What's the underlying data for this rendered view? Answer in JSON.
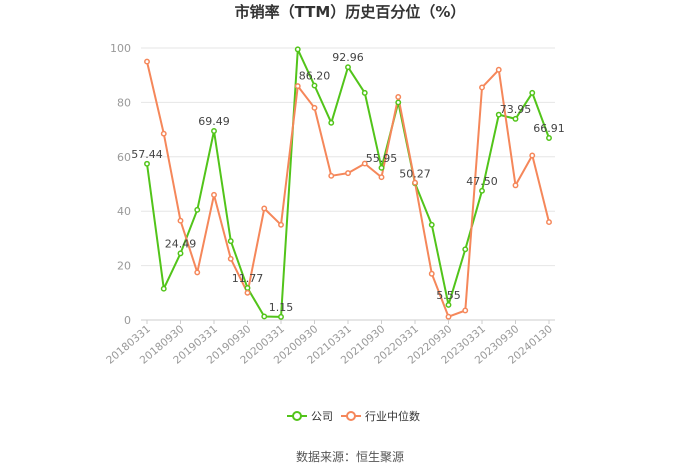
{
  "chart_data": {
    "type": "line",
    "title": "市销率（TTM）历史百分位（%）",
    "ylim": [
      0,
      100
    ],
    "yticks": [
      0,
      20,
      40,
      60,
      80,
      100
    ],
    "x_tick_labels": [
      "20180331",
      "20180930",
      "20190331",
      "20190930",
      "20200331",
      "20200930",
      "20210331",
      "20210930",
      "20220331",
      "20220930",
      "20230331",
      "20230930",
      "20240130"
    ],
    "x": [
      "20180331",
      "20180630",
      "20180930",
      "20181231",
      "20190331",
      "20190630",
      "20190930",
      "20191231",
      "20200331",
      "20200630",
      "20200930",
      "20201231",
      "20210331",
      "20210630",
      "20210930",
      "20211231",
      "20220331",
      "20220630",
      "20220930",
      "20221231",
      "20230331",
      "20230630",
      "20230930",
      "20231231",
      "20240130"
    ],
    "series": [
      {
        "name": "公司",
        "color": "#52c41a",
        "values": [
          57.44,
          11.5,
          24.49,
          40.5,
          69.49,
          29,
          11.77,
          1.3,
          1.15,
          99.5,
          86.2,
          72.5,
          92.96,
          83.5,
          55.95,
          80,
          50.27,
          35,
          5.55,
          26,
          47.5,
          75.5,
          73.95,
          83.5,
          66.91
        ]
      },
      {
        "name": "行业中位数",
        "color": "#f5875a",
        "values": [
          95,
          68.5,
          36.5,
          17.5,
          46,
          22.5,
          10,
          41,
          35,
          86,
          78,
          53,
          54,
          57.5,
          52.5,
          82,
          50.5,
          17,
          1.2,
          3.5,
          85.5,
          92,
          49.5,
          60.5,
          36
        ]
      }
    ],
    "data_labels": [
      {
        "series": 0,
        "index": 0,
        "text": "57.44"
      },
      {
        "series": 0,
        "index": 2,
        "text": "24.49"
      },
      {
        "series": 0,
        "index": 4,
        "text": "69.49"
      },
      {
        "series": 0,
        "index": 6,
        "text": "11.77"
      },
      {
        "series": 0,
        "index": 8,
        "text": "1.15"
      },
      {
        "series": 0,
        "index": 10,
        "text": "86.20"
      },
      {
        "series": 0,
        "index": 12,
        "text": "92.96"
      },
      {
        "series": 0,
        "index": 14,
        "text": "55.95"
      },
      {
        "series": 0,
        "index": 16,
        "text": "50.27"
      },
      {
        "series": 0,
        "index": 18,
        "text": "5.55"
      },
      {
        "series": 0,
        "index": 20,
        "text": "47.50"
      },
      {
        "series": 0,
        "index": 22,
        "text": "73.95"
      },
      {
        "series": 0,
        "index": 24,
        "text": "66.91"
      }
    ],
    "legend": [
      {
        "name": "公司",
        "color": "#52c41a"
      },
      {
        "name": "行业中位数",
        "color": "#f5875a"
      }
    ],
    "legend_position": "bottom",
    "grid": true,
    "source": "数据来源：恒生聚源"
  }
}
